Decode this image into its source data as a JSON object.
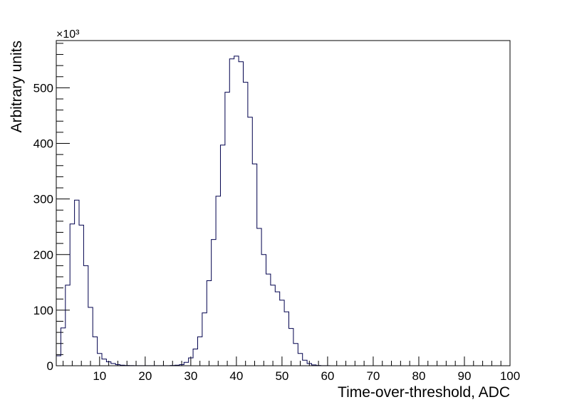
{
  "chart_data": {
    "type": "histogram",
    "title": "",
    "xlabel": "Time-over-threshold, ADC",
    "ylabel": "Arbitrary units",
    "y_multiplier_label": "×10³",
    "x_range": [
      0.5,
      100
    ],
    "y_range": [
      0,
      585
    ],
    "x_ticks": [
      10,
      20,
      30,
      40,
      50,
      60,
      70,
      80,
      90,
      100
    ],
    "y_ticks": [
      0,
      100,
      200,
      300,
      400,
      500
    ],
    "grid": false,
    "legend": "none",
    "line_color": "#00004d",
    "bin_width": 1,
    "bin_starts": [
      0.5,
      1.5,
      2.5,
      3.5,
      4.5,
      5.5,
      6.5,
      7.5,
      8.5,
      9.5,
      10.5,
      11.5,
      12.5,
      13.5,
      14.5,
      15.5,
      16.5,
      17.5,
      18.5,
      19.5,
      20.5,
      21.5,
      22.5,
      23.5,
      24.5,
      25.5,
      26.5,
      27.5,
      28.5,
      29.5,
      30.5,
      31.5,
      32.5,
      33.5,
      34.5,
      35.5,
      36.5,
      37.5,
      38.5,
      39.5,
      40.5,
      41.5,
      42.5,
      43.5,
      44.5,
      45.5,
      46.5,
      47.5,
      48.5,
      49.5,
      50.5,
      51.5,
      52.5,
      53.5,
      54.5,
      55.5,
      56.5,
      57.5,
      58.5,
      59.5,
      60.5
    ],
    "values": [
      18,
      68,
      145,
      255,
      298,
      253,
      180,
      105,
      52,
      22,
      12,
      7,
      4,
      2,
      1,
      0.5,
      0.3,
      0.2,
      0.1,
      0.1,
      0.1,
      0.1,
      0.1,
      0.1,
      0.2,
      0.5,
      1,
      2,
      6,
      14,
      30,
      52,
      95,
      153,
      227,
      305,
      397,
      492,
      552,
      557,
      547,
      510,
      447,
      363,
      247,
      200,
      165,
      145,
      133,
      118,
      97,
      67,
      40,
      22,
      10,
      4,
      1.5,
      0.5,
      0.2,
      0.1,
      0
    ]
  }
}
